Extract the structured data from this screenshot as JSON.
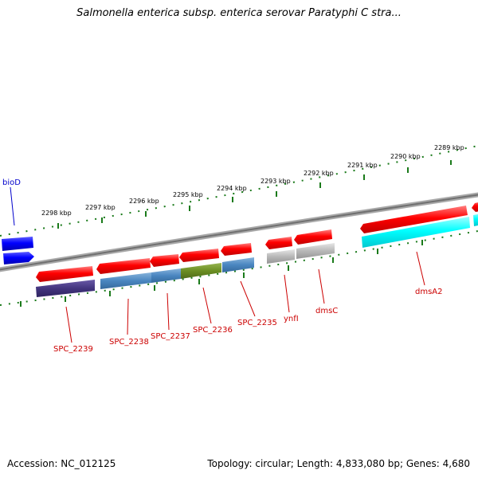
{
  "title": "Salmonella enterica subsp. enterica serovar Paratyphi C stra...",
  "footer": {
    "accession": "Accession: NC_012125",
    "summary": "Topology: circular; Length: 4,833,080 bp; Genes: 4,680"
  },
  "scale_ticks": [
    "2289 kbp",
    "2290 kbp",
    "2291 kbp",
    "2292 kbp",
    "2293 kbp",
    "2294 kbp",
    "2295 kbp",
    "2296 kbp",
    "2297 kbp",
    "2298 kbp"
  ],
  "gene_labels": [
    "bioD",
    "SPC_2239",
    "SPC_2238",
    "SPC_2237",
    "SPC_2236",
    "SPC_2235",
    "ynfI",
    "dmsC",
    "dmsA2"
  ],
  "colors": {
    "cds_forward": "#ff0000",
    "backbone": "#808080",
    "tick": "#1a7a1a",
    "bioD": "#0000ff",
    "label_red": "#cc0000",
    "label_blue": "#0000cc"
  }
}
